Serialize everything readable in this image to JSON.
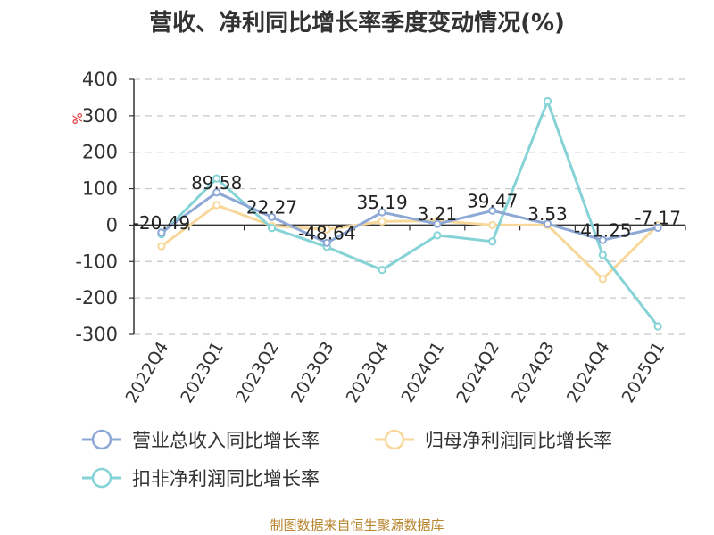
{
  "chart_data": {
    "type": "line",
    "title": "营收、净利同比增长率季度变动情况(%)",
    "ylabel": "%",
    "categories": [
      "2022Q4",
      "2023Q1",
      "2023Q2",
      "2023Q3",
      "2023Q4",
      "2024Q1",
      "2024Q2",
      "2024Q3",
      "2024Q4",
      "2025Q1"
    ],
    "ylim": [
      -300,
      400
    ],
    "yticks": [
      400,
      300,
      200,
      100,
      0,
      -100,
      -200,
      -300
    ],
    "grid": true,
    "legend_position": "bottom",
    "series": [
      {
        "name": "营业总收入同比增长率",
        "color": "#8ea8d6",
        "values": [
          -20.49,
          89.58,
          22.27,
          -48.64,
          35.19,
          3.21,
          39.47,
          3.53,
          -41.25,
          -7.17
        ],
        "labels": [
          "-20.49",
          "89.58",
          "22.27",
          "-48.64",
          "35.19",
          "3.21",
          "39.47",
          "3.53",
          "-41.25",
          "-7.17"
        ]
      },
      {
        "name": "归母净利润同比增长率",
        "color": "#f8d89a",
        "values": [
          -58,
          55,
          -2,
          -12,
          10,
          12,
          0,
          0,
          -148,
          0
        ]
      },
      {
        "name": "扣非净利润同比增长率",
        "color": "#85d3d6",
        "values": [
          -25,
          128,
          -8,
          -60,
          -123,
          -28,
          -45,
          340,
          -82,
          -278
        ]
      }
    ]
  },
  "source": "制图数据来自恒生聚源数据库"
}
